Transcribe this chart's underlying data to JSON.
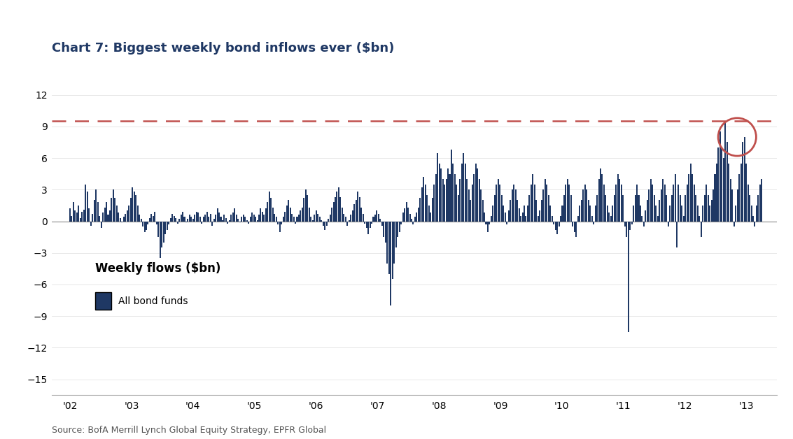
{
  "title": "Chart 7: Biggest weekly bond inflows ever ($bn)",
  "source": "Source: BofA Merrill Lynch Global Equity Strategy, EPFR Global",
  "bar_color": "#1F3864",
  "dashed_line_y": 9.5,
  "dashed_line_color": "#C0504D",
  "circle_color": "#C0504D",
  "ylim": [
    -16.5,
    13.5
  ],
  "yticks": [
    -15,
    -12,
    -9,
    -6,
    -3,
    0,
    3,
    6,
    9,
    12
  ],
  "xlabel_years": [
    "'02",
    "'03",
    "'04",
    "'05",
    "'06",
    "'07",
    "'08",
    "'09",
    "'10",
    "'11",
    "'12",
    "'13"
  ],
  "legend_label": "All bond funds",
  "legend_title": "Weekly flows ($bn)",
  "background_color": "#FFFFFF",
  "title_color": "#1F3864",
  "title_line_color": "#1F3864",
  "year_start": 2002.0,
  "year_end": 2013.25,
  "weekly_data": [
    1.2,
    0.5,
    1.8,
    1.0,
    0.8,
    1.5,
    0.3,
    0.9,
    1.1,
    3.5,
    2.8,
    1.2,
    -0.4,
    0.7,
    2.0,
    3.0,
    1.8,
    0.5,
    -0.6,
    0.8,
    1.3,
    1.8,
    0.6,
    1.0,
    2.2,
    3.0,
    2.2,
    1.5,
    0.8,
    0.3,
    -0.1,
    0.4,
    0.7,
    1.0,
    1.5,
    2.2,
    3.2,
    2.8,
    2.5,
    1.5,
    0.6,
    0.2,
    -0.5,
    -1.0,
    -0.8,
    -0.3,
    0.3,
    0.7,
    0.5,
    0.9,
    -0.3,
    -1.5,
    -3.5,
    -2.5,
    -2.0,
    -1.2,
    -0.8,
    -0.3,
    0.3,
    0.7,
    0.5,
    0.3,
    -0.2,
    0.2,
    0.6,
    0.9,
    0.4,
    -0.1,
    0.2,
    0.6,
    0.4,
    0.2,
    0.6,
    0.9,
    0.8,
    0.4,
    -0.2,
    0.4,
    0.6,
    0.9,
    0.4,
    0.7,
    -0.4,
    0.2,
    0.6,
    1.2,
    0.8,
    0.4,
    0.1,
    0.6,
    0.3,
    -0.2,
    0.1,
    0.6,
    0.8,
    1.2,
    0.6,
    0.2,
    -0.1,
    0.4,
    0.6,
    0.4,
    0.1,
    -0.2,
    0.4,
    0.8,
    0.6,
    0.4,
    0.1,
    0.6,
    1.2,
    0.9,
    0.6,
    1.2,
    1.8,
    2.8,
    2.2,
    1.3,
    0.7,
    0.4,
    -0.3,
    -1.0,
    -0.3,
    0.4,
    0.9,
    1.5,
    2.0,
    1.3,
    0.7,
    0.4,
    -0.2,
    0.4,
    0.6,
    1.0,
    1.3,
    2.2,
    3.0,
    2.5,
    1.3,
    0.4,
    0.1,
    0.6,
    1.0,
    0.7,
    0.4,
    0.1,
    -0.4,
    -0.8,
    -0.4,
    0.2,
    0.6,
    1.3,
    1.8,
    2.3,
    2.8,
    3.2,
    2.3,
    1.3,
    0.7,
    0.4,
    -0.4,
    0.1,
    0.6,
    1.0,
    1.6,
    2.0,
    2.8,
    2.3,
    1.3,
    0.7,
    -0.2,
    -0.6,
    -1.2,
    -0.6,
    -0.2,
    0.4,
    0.6,
    1.0,
    0.7,
    0.2,
    -0.4,
    -1.5,
    -2.0,
    -4.0,
    -5.0,
    -8.0,
    -5.5,
    -4.0,
    -2.5,
    -1.5,
    -1.0,
    -0.3,
    0.8,
    1.2,
    1.8,
    1.3,
    0.7,
    0.2,
    -0.3,
    0.4,
    0.8,
    1.3,
    2.2,
    3.2,
    4.2,
    3.5,
    2.5,
    1.5,
    0.8,
    2.2,
    3.5,
    4.5,
    6.5,
    5.5,
    5.0,
    4.0,
    3.5,
    4.0,
    5.0,
    4.5,
    6.8,
    5.5,
    4.5,
    3.5,
    2.5,
    4.0,
    5.5,
    6.5,
    5.5,
    4.0,
    3.0,
    2.0,
    3.5,
    4.5,
    5.5,
    5.0,
    4.0,
    3.0,
    2.0,
    0.8,
    -0.3,
    -1.0,
    -0.3,
    0.5,
    1.5,
    2.5,
    3.5,
    4.0,
    3.5,
    2.5,
    1.5,
    0.8,
    -0.3,
    1.0,
    2.0,
    3.0,
    3.5,
    3.0,
    2.0,
    1.2,
    0.5,
    0.8,
    1.5,
    0.5,
    1.5,
    2.5,
    3.5,
    4.5,
    3.5,
    2.0,
    0.5,
    1.0,
    2.0,
    3.0,
    4.0,
    3.5,
    2.5,
    1.5,
    0.5,
    -0.3,
    -0.8,
    -1.2,
    -0.5,
    0.5,
    1.5,
    2.5,
    3.5,
    4.0,
    3.5,
    2.5,
    -0.5,
    -1.0,
    -1.5,
    0.5,
    1.5,
    2.0,
    3.0,
    3.5,
    3.0,
    2.0,
    1.5,
    0.5,
    -0.3,
    1.5,
    2.5,
    4.0,
    5.0,
    4.5,
    3.5,
    2.5,
    1.5,
    0.8,
    0.5,
    1.5,
    2.5,
    3.5,
    4.5,
    4.0,
    3.5,
    2.5,
    -0.5,
    -1.5,
    -10.5,
    -0.8,
    -0.3,
    1.5,
    2.5,
    3.5,
    2.5,
    1.5,
    0.5,
    -0.5,
    1.0,
    2.0,
    3.0,
    4.0,
    3.5,
    2.5,
    1.5,
    0.5,
    2.0,
    3.0,
    4.0,
    3.5,
    2.5,
    -0.5,
    1.5,
    2.5,
    3.5,
    4.5,
    -2.5,
    3.5,
    2.5,
    1.5,
    0.5,
    2.5,
    3.5,
    4.5,
    5.5,
    4.5,
    3.5,
    2.5,
    1.5,
    0.5,
    -1.5,
    1.5,
    2.5,
    3.5,
    2.5,
    1.5,
    2.0,
    3.0,
    4.5,
    5.5,
    7.0,
    8.5,
    7.0,
    6.0,
    9.5,
    7.5,
    5.5,
    4.0,
    3.0,
    -0.5,
    1.5,
    3.0,
    4.5,
    5.5,
    7.5,
    8.0,
    5.5,
    3.5,
    2.5,
    1.5,
    0.5,
    -0.5,
    1.5,
    2.5,
    3.5,
    4.0
  ]
}
